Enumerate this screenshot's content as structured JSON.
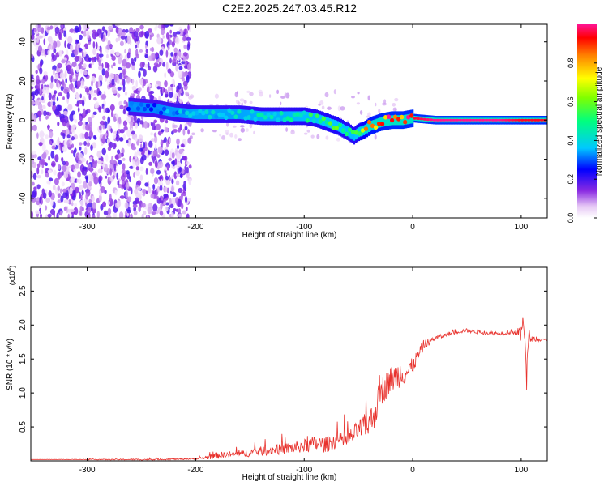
{
  "title": "C2E2.2025.247.03.45.R12",
  "chart_data": [
    {
      "type": "heatmap",
      "name": "spectrogram",
      "xlabel": "Height of straight line (km)",
      "ylabel": "Frequency (Hz)",
      "xlim": [
        -352,
        124
      ],
      "ylim": [
        -50,
        49
      ],
      "xticks": [
        -300,
        -200,
        -100,
        0,
        100
      ],
      "xtick_labels": [
        "-300",
        "-200",
        "-100",
        "0",
        "100"
      ],
      "yticks": [
        -40,
        -20,
        0,
        20,
        40
      ],
      "ytick_labels": [
        "-40",
        "-20",
        "0",
        "20",
        "40"
      ],
      "colorbar": {
        "label": "Normalized spectral amplitude",
        "range": [
          0,
          1
        ],
        "ticks": [
          0.0,
          0.2,
          0.4,
          0.6,
          0.8
        ],
        "tick_labels": [
          "0.0",
          "0.2",
          "0.4",
          "0.6",
          "0.8"
        ]
      },
      "ridge": {
        "description": "dominant frequency vs height",
        "x": [
          -262,
          -240,
          -220,
          -200,
          -180,
          -160,
          -140,
          -120,
          -100,
          -90,
          -80,
          -70,
          -60,
          -55,
          -50,
          -45,
          -40,
          -30,
          -20,
          -10,
          0,
          20,
          40,
          60,
          80,
          100,
          124
        ],
        "y": [
          7,
          6,
          4,
          3,
          3,
          3,
          2,
          2,
          2,
          1,
          -1,
          -3,
          -6,
          -8,
          -6,
          -5,
          -3,
          -1,
          0,
          0,
          1,
          0,
          0,
          0,
          0,
          0,
          0
        ],
        "amplitude": [
          0.3,
          0.3,
          0.35,
          0.4,
          0.4,
          0.4,
          0.45,
          0.45,
          0.5,
          0.5,
          0.55,
          0.55,
          0.5,
          0.5,
          0.6,
          0.75,
          0.85,
          0.9,
          0.95,
          0.95,
          0.95,
          1.0,
          1.0,
          1.0,
          1.0,
          0.95,
          0.95
        ]
      },
      "noise_region": {
        "x_range": [
          -352,
          -205
        ],
        "y_range": [
          -50,
          49
        ],
        "amplitude_range": [
          0.02,
          0.2
        ]
      }
    },
    {
      "type": "line",
      "name": "snr",
      "xlabel": "Height of straight line (km)",
      "ylabel": "SNR (10 * v/v)",
      "y_scale_label": "(x10",
      "y_scale_exponent": "4",
      "xlim": [
        -352,
        124
      ],
      "ylim": [
        0,
        2.85
      ],
      "xticks": [
        -300,
        -200,
        -100,
        0,
        100
      ],
      "xtick_labels": [
        "-300",
        "-200",
        "-100",
        "0",
        "100"
      ],
      "yticks": [
        0.5,
        1.0,
        1.5,
        2.0,
        2.5
      ],
      "ytick_labels": [
        "0.5",
        "1.0",
        "1.5",
        "2.0",
        "2.5"
      ],
      "color": "#e8322d",
      "x": [
        -352,
        -300,
        -250,
        -200,
        -190,
        -180,
        -170,
        -160,
        -150,
        -140,
        -130,
        -120,
        -110,
        -100,
        -90,
        -80,
        -70,
        -60,
        -50,
        -45,
        -40,
        -35,
        -30,
        -25,
        -20,
        -15,
        -10,
        -5,
        0,
        5,
        10,
        15,
        20,
        30,
        40,
        50,
        60,
        70,
        80,
        90,
        95,
        100,
        103,
        105,
        107,
        110,
        115,
        124
      ],
      "y": [
        0.02,
        0.02,
        0.02,
        0.03,
        0.05,
        0.08,
        0.09,
        0.1,
        0.12,
        0.14,
        0.16,
        0.17,
        0.2,
        0.22,
        0.25,
        0.24,
        0.3,
        0.3,
        0.45,
        0.5,
        0.55,
        0.7,
        1.0,
        1.1,
        1.2,
        1.25,
        1.3,
        1.3,
        1.4,
        1.55,
        1.7,
        1.75,
        1.8,
        1.85,
        1.9,
        1.92,
        1.9,
        1.88,
        1.88,
        1.9,
        1.9,
        1.85,
        2.2,
        1.2,
        1.8,
        1.8,
        1.78,
        1.78
      ],
      "noise_amplitude": [
        0.0,
        0.005,
        0.01,
        0.01,
        0.03,
        0.05,
        0.05,
        0.05,
        0.06,
        0.07,
        0.07,
        0.08,
        0.09,
        0.1,
        0.12,
        0.12,
        0.12,
        0.13,
        0.15,
        0.18,
        0.2,
        0.22,
        0.22,
        0.2,
        0.2,
        0.2,
        0.2,
        0.15,
        0.12,
        0.1,
        0.08,
        0.05,
        0.04,
        0.03,
        0.03,
        0.03,
        0.03,
        0.03,
        0.03,
        0.04,
        0.05,
        0.12,
        0.45,
        0.3,
        0.15,
        0.04,
        0.02,
        0.02
      ]
    }
  ]
}
